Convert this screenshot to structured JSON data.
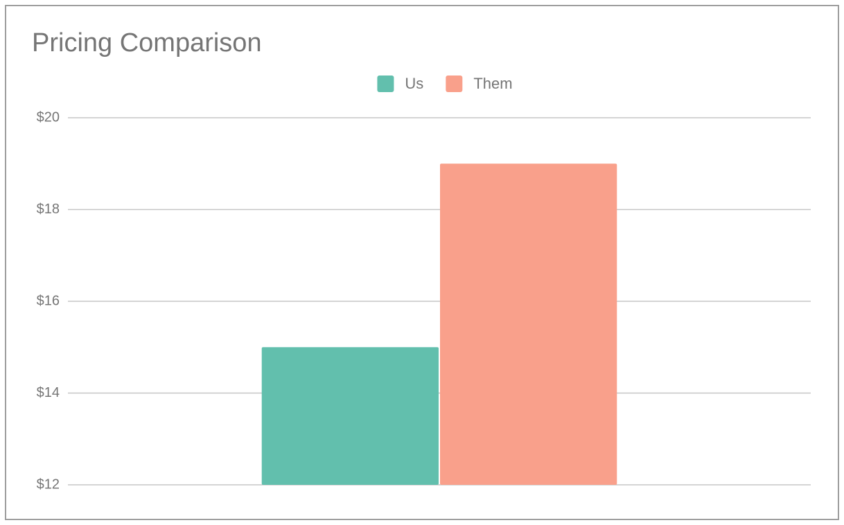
{
  "chart_data": {
    "type": "bar",
    "title": "Pricing Comparison",
    "categories": [
      null
    ],
    "series": [
      {
        "name": "Us",
        "color": "#62bfad",
        "values": [
          15
        ]
      },
      {
        "name": "Them",
        "color": "#f9a08b",
        "values": [
          19
        ]
      }
    ],
    "ylim": [
      12,
      20
    ],
    "yticks": [
      {
        "value": 12,
        "label": "$12"
      },
      {
        "value": 14,
        "label": "$14"
      },
      {
        "value": 16,
        "label": "$16"
      },
      {
        "value": 18,
        "label": "$18"
      },
      {
        "value": 20,
        "label": "$20"
      }
    ],
    "grid": true,
    "legend": "top"
  }
}
